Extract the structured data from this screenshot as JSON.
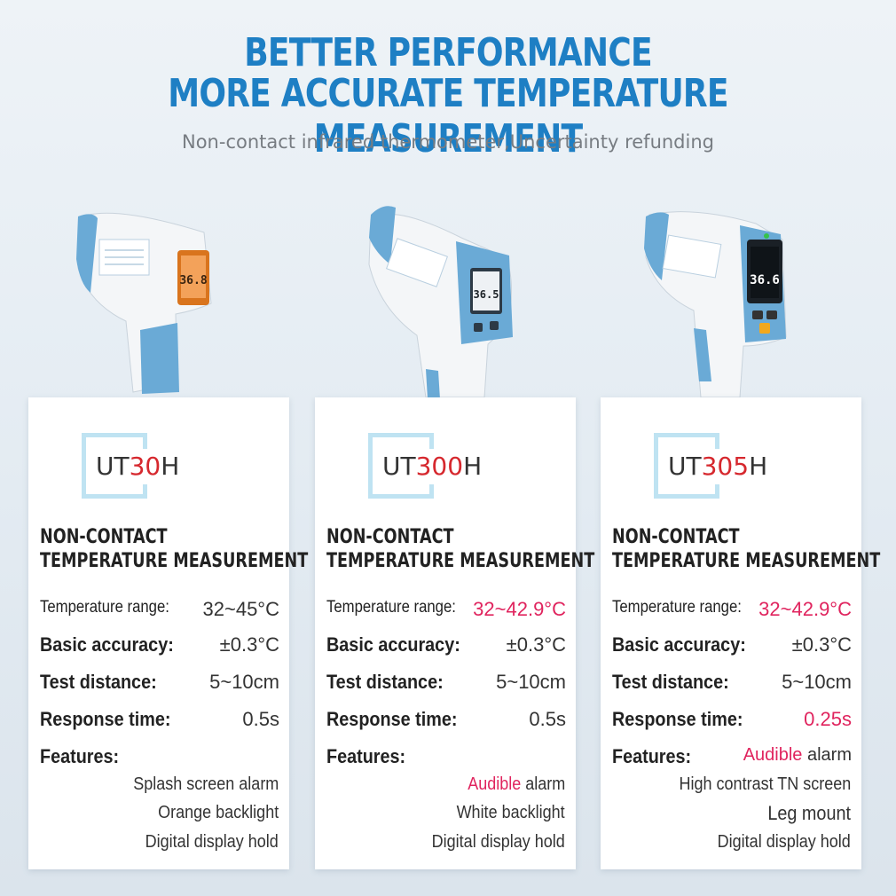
{
  "header": {
    "line1": "BETTER PERFORMANCE",
    "line2": "MORE ACCURATE TEMPERATURE MEASUREMENT",
    "subtitle": "Non-contact infrared thermometer,Uncertainty refunding"
  },
  "colors": {
    "accent": "#1e7fc4",
    "highlight": "#e0245e",
    "model_number": "#d6282e",
    "device_blue": "#6aaad6"
  },
  "labels": {
    "title_line1": "NON-CONTACT",
    "title_line2": "TEMPERATURE MEASUREMENT",
    "temperature_range": "Temperature range:",
    "basic_accuracy": "Basic accuracy:",
    "test_distance": "Test distance:",
    "response_time": "Response time:",
    "features": "Features:"
  },
  "products": [
    {
      "model_prefix": "UT",
      "model_number": "30",
      "model_suffix": "H",
      "display": "36.8",
      "temperature_range": "32~45°C",
      "basic_accuracy": "±0.3°C",
      "test_distance": "5~10cm",
      "response_time": "0.5s",
      "features": [
        "Splash screen alarm",
        "Orange backlight",
        "Digital display hold"
      ]
    },
    {
      "model_prefix": "UT",
      "model_number": "300",
      "model_suffix": "H",
      "display": "36.5",
      "temperature_range": "32~42.9°C",
      "basic_accuracy": "±0.3°C",
      "test_distance": "5~10cm",
      "response_time": "0.5s",
      "features_line1_red": "Audible",
      "features_line1_rest": " alarm",
      "features": [
        "Audible alarm",
        "White backlight",
        "Digital display hold"
      ]
    },
    {
      "model_prefix": "UT",
      "model_number": "305",
      "model_suffix": "H",
      "display": "36.6",
      "temperature_range": "32~42.9°C",
      "basic_accuracy": "±0.3°C",
      "test_distance": "5~10cm",
      "response_time": "0.25s",
      "features_line1_red": "Audible",
      "features_line1_rest": " alarm",
      "features": [
        "Audible alarm",
        "High contrast TN screen",
        "Leg mount",
        "Digital display hold"
      ]
    }
  ]
}
